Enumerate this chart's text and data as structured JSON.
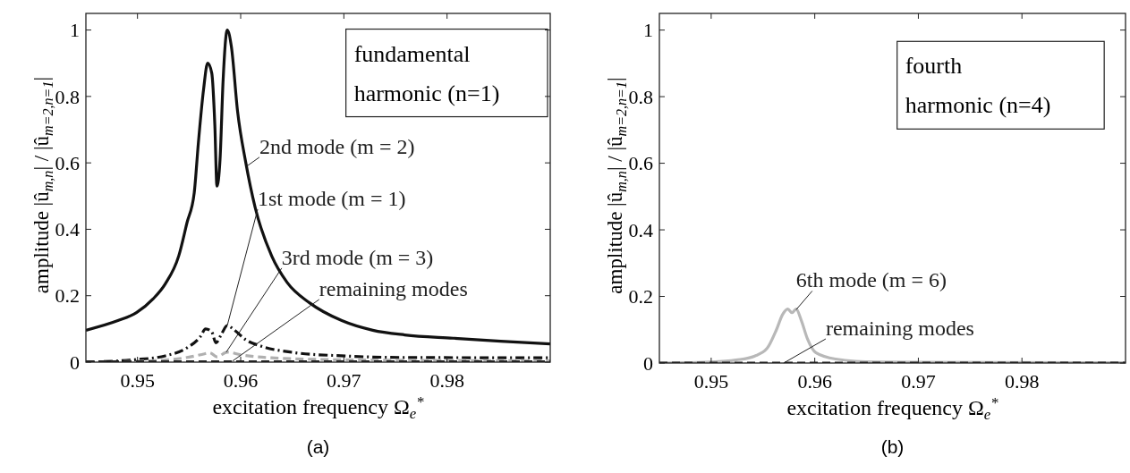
{
  "chart_data": [
    {
      "type": "line",
      "title": "(a)",
      "xlabel": "excitation frequency Ω$_{e}$$^{*}$",
      "ylabel": "amplitude |û$_{m,n}$| / |û$_{m=2,n=1}$|",
      "xlim": [
        0.945,
        0.99
      ],
      "ylim": [
        0,
        1.05
      ],
      "xticks": [
        0.95,
        0.96,
        0.97,
        0.98
      ],
      "yticks": [
        0,
        0.2,
        0.4,
        0.6,
        0.8,
        1
      ],
      "grid": false,
      "annotations": [
        "fundamental harmonic (n=1)",
        {
          "text": "2nd mode (m = 2)",
          "x": 0.9606,
          "y": 0.59
        },
        {
          "text": "1st mode (m = 1)",
          "x": 0.9587,
          "y": 0.11
        },
        {
          "text": "3rd mode (m = 3)",
          "x": 0.9586,
          "y": 0.03
        },
        {
          "text": "remaining modes",
          "x": 0.9592,
          "y": 0.003
        }
      ],
      "series": [
        {
          "color": "#111111",
          "line_style": "solid",
          "x": [
            0.945,
            0.9481,
            0.9499,
            0.9515,
            0.9527,
            0.954,
            0.9548,
            0.9555,
            0.9559,
            0.9564,
            0.9568,
            0.9572,
            0.9575,
            0.9577,
            0.958,
            0.9583,
            0.9587,
            0.9591,
            0.9597,
            0.9605,
            0.9614,
            0.963,
            0.9645,
            0.9667,
            0.9698,
            0.9728,
            0.9759,
            0.9806,
            0.9852,
            0.99
          ],
          "values": [
            0.096,
            0.125,
            0.149,
            0.19,
            0.236,
            0.32,
            0.42,
            0.51,
            0.66,
            0.82,
            0.9,
            0.87,
            0.71,
            0.53,
            0.61,
            0.85,
            1.0,
            0.95,
            0.755,
            0.6,
            0.466,
            0.32,
            0.24,
            0.178,
            0.125,
            0.096,
            0.082,
            0.072,
            0.063,
            0.055
          ]
        },
        {
          "color": "#111111",
          "line_style": "dashdot",
          "x": [
            0.945,
            0.9496,
            0.9527,
            0.9548,
            0.9561,
            0.9566,
            0.9572,
            0.9576,
            0.9581,
            0.9587,
            0.9594,
            0.9605,
            0.962,
            0.9651,
            0.9697,
            0.9759,
            0.99
          ],
          "values": [
            0,
            0.007,
            0.019,
            0.043,
            0.077,
            0.1,
            0.091,
            0.058,
            0.082,
            0.11,
            0.096,
            0.067,
            0.048,
            0.029,
            0.019,
            0.014,
            0.013
          ]
        },
        {
          "color": "#b0b0b0",
          "line_style": "dashed",
          "x": [
            0.945,
            0.952,
            0.955,
            0.9565,
            0.957,
            0.9577,
            0.9587,
            0.96,
            0.963,
            0.97,
            0.99
          ],
          "values": [
            0,
            0.005,
            0.015,
            0.025,
            0.028,
            0.016,
            0.03,
            0.022,
            0.013,
            0.007,
            0.004
          ]
        },
        {
          "color": "#222222",
          "line_style": "dashed",
          "x": [
            0.945,
            0.99
          ],
          "values": [
            0.001,
            0.001
          ]
        }
      ]
    },
    {
      "type": "line",
      "title": "(b)",
      "xlabel": "excitation frequency Ω$_{e}$$^{*}$",
      "ylabel": "amplitude |û$_{m,n}$| / |û$_{m=2,n=1}$|",
      "xlim": [
        0.945,
        0.99
      ],
      "ylim": [
        0,
        1.05
      ],
      "xticks": [
        0.95,
        0.96,
        0.97,
        0.98
      ],
      "yticks": [
        0,
        0.2,
        0.4,
        0.6,
        0.8,
        1
      ],
      "grid": false,
      "annotations": [
        "fourth harmonic (n=4)",
        {
          "text": "6th mode (m = 6)",
          "x": 0.9582,
          "y": 0.16
        },
        {
          "text": "remaining modes",
          "x": 0.957,
          "y": 0
        }
      ],
      "series": [
        {
          "color": "#b8b8b8",
          "line_style": "solid",
          "x": [
            0.945,
            0.95,
            0.9524,
            0.9542,
            0.9554,
            0.9563,
            0.9569,
            0.9574,
            0.9578,
            0.9582,
            0.9587,
            0.9593,
            0.9601,
            0.962,
            0.9659,
            0.99
          ],
          "values": [
            0,
            0.003,
            0.009,
            0.021,
            0.044,
            0.1,
            0.146,
            0.162,
            0.151,
            0.162,
            0.128,
            0.072,
            0.031,
            0.012,
            0.003,
            0.001
          ]
        },
        {
          "color": "#222222",
          "line_style": "dashed",
          "x": [
            0.945,
            0.99
          ],
          "values": [
            0,
            0
          ]
        }
      ]
    }
  ]
}
